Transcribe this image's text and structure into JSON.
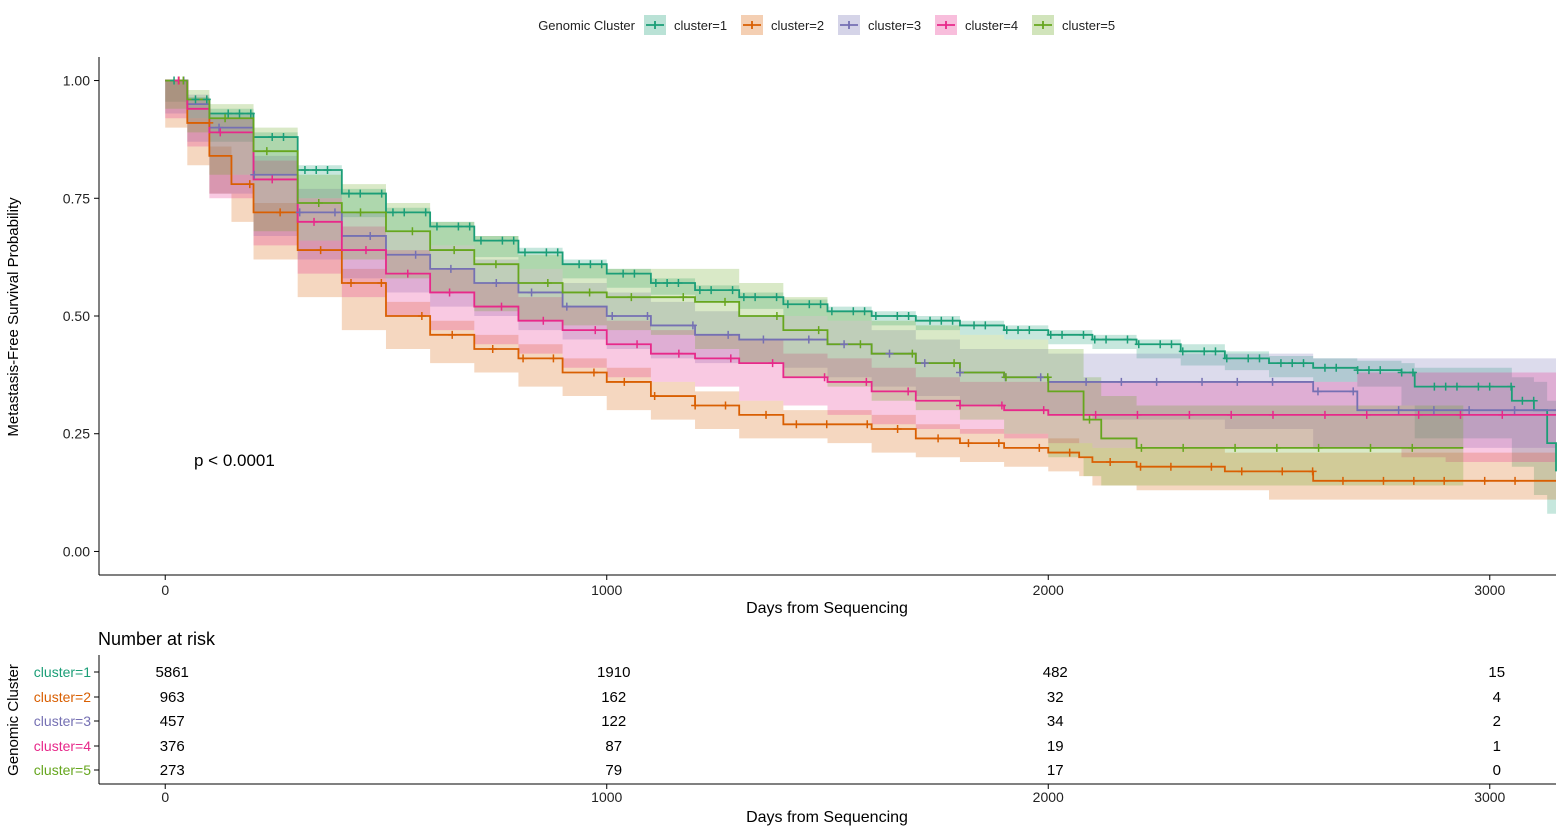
{
  "chart_data": {
    "type": "line",
    "subtype": "kaplan-meier survival curves with confidence bands and number-at-risk table",
    "legend": {
      "title": "Genomic Cluster",
      "position": "top",
      "entries": [
        "cluster=1",
        "cluster=2",
        "cluster=3",
        "cluster=4",
        "cluster=5"
      ]
    },
    "xlabel": "Days from Sequencing",
    "ylabel": "Metastasis-Free Survival Probability",
    "xlim": [
      -150,
      3150
    ],
    "ylim": [
      -0.05,
      1.05
    ],
    "x_ticks": [
      0,
      1000,
      2000,
      3000
    ],
    "x_tick_labels": [
      "0",
      "1000",
      "2000",
      "3000"
    ],
    "y_ticks": [
      0,
      0.25,
      0.5,
      0.75,
      1.0
    ],
    "y_tick_labels": [
      "0.00",
      "0.25",
      "0.50",
      "0.75",
      "1.00"
    ],
    "grid": false,
    "annotation": "p < 0.0001",
    "series": [
      {
        "name": "cluster=1",
        "color": "#1b9e77",
        "x": [
          0,
          50,
          100,
          200,
          300,
          400,
          500,
          600,
          700,
          800,
          900,
          1000,
          1100,
          1200,
          1300,
          1400,
          1500,
          1600,
          1700,
          1800,
          1900,
          2000,
          2100,
          2200,
          2300,
          2400,
          2500,
          2600,
          2700,
          2800,
          2830,
          3050,
          3100,
          3130,
          3150
        ],
        "y": [
          1.0,
          0.96,
          0.93,
          0.88,
          0.81,
          0.76,
          0.72,
          0.69,
          0.66,
          0.635,
          0.61,
          0.59,
          0.57,
          0.555,
          0.54,
          0.525,
          0.51,
          0.5,
          0.49,
          0.48,
          0.47,
          0.46,
          0.45,
          0.44,
          0.425,
          0.41,
          0.4,
          0.39,
          0.385,
          0.38,
          0.35,
          0.32,
          0.3,
          0.23,
          0.17
        ],
        "lower": [
          1.0,
          0.955,
          0.92,
          0.87,
          0.8,
          0.75,
          0.71,
          0.68,
          0.65,
          0.625,
          0.6,
          0.58,
          0.56,
          0.545,
          0.53,
          0.515,
          0.5,
          0.49,
          0.48,
          0.47,
          0.46,
          0.45,
          0.44,
          0.43,
          0.41,
          0.395,
          0.385,
          0.37,
          0.36,
          0.35,
          0.31,
          0.24,
          0.18,
          0.12,
          0.08
        ],
        "upper": [
          1.0,
          0.965,
          0.94,
          0.89,
          0.82,
          0.77,
          0.73,
          0.7,
          0.67,
          0.645,
          0.62,
          0.6,
          0.58,
          0.565,
          0.55,
          0.535,
          0.52,
          0.51,
          0.5,
          0.49,
          0.48,
          0.47,
          0.46,
          0.45,
          0.44,
          0.425,
          0.415,
          0.41,
          0.405,
          0.4,
          0.39,
          0.37,
          0.36,
          0.32,
          0.28
        ]
      },
      {
        "name": "cluster=2",
        "color": "#d95f02",
        "x": [
          0,
          50,
          100,
          150,
          200,
          300,
          400,
          500,
          600,
          700,
          800,
          900,
          1000,
          1100,
          1200,
          1300,
          1400,
          1500,
          1600,
          1700,
          1800,
          1900,
          2000,
          2070,
          2100,
          2200,
          2400,
          2500,
          2600,
          2800,
          2900,
          3000,
          3150
        ],
        "y": [
          1.0,
          0.91,
          0.84,
          0.78,
          0.72,
          0.64,
          0.57,
          0.5,
          0.46,
          0.43,
          0.41,
          0.38,
          0.36,
          0.33,
          0.31,
          0.29,
          0.27,
          0.27,
          0.26,
          0.24,
          0.23,
          0.22,
          0.21,
          0.2,
          0.19,
          0.18,
          0.17,
          0.17,
          0.15,
          0.15,
          0.15,
          0.15,
          0.15
        ],
        "lower": [
          1.0,
          0.9,
          0.82,
          0.76,
          0.7,
          0.62,
          0.54,
          0.47,
          0.43,
          0.4,
          0.38,
          0.35,
          0.33,
          0.3,
          0.28,
          0.26,
          0.24,
          0.24,
          0.23,
          0.21,
          0.2,
          0.19,
          0.18,
          0.17,
          0.16,
          0.14,
          0.13,
          0.13,
          0.11,
          0.11,
          0.11,
          0.11,
          0.11
        ],
        "upper": [
          1.0,
          0.92,
          0.86,
          0.8,
          0.74,
          0.66,
          0.6,
          0.53,
          0.49,
          0.46,
          0.44,
          0.41,
          0.39,
          0.36,
          0.34,
          0.32,
          0.3,
          0.3,
          0.29,
          0.27,
          0.26,
          0.25,
          0.24,
          0.23,
          0.22,
          0.22,
          0.21,
          0.21,
          0.21,
          0.21,
          0.21,
          0.21,
          0.21
        ]
      },
      {
        "name": "cluster=3",
        "color": "#7570b3",
        "x": [
          0,
          50,
          100,
          200,
          300,
          400,
          500,
          600,
          700,
          800,
          900,
          1000,
          1100,
          1200,
          1300,
          1400,
          1500,
          1600,
          1700,
          1800,
          1900,
          2000,
          2100,
          2200,
          2300,
          2400,
          2600,
          2700,
          2800,
          2900,
          3000,
          3150
        ],
        "y": [
          1.0,
          0.95,
          0.9,
          0.8,
          0.72,
          0.67,
          0.63,
          0.6,
          0.57,
          0.55,
          0.52,
          0.5,
          0.48,
          0.46,
          0.45,
          0.45,
          0.44,
          0.42,
          0.4,
          0.38,
          0.37,
          0.36,
          0.36,
          0.36,
          0.36,
          0.36,
          0.34,
          0.3,
          0.3,
          0.3,
          0.3,
          0.3
        ],
        "lower": [
          1.0,
          0.93,
          0.87,
          0.76,
          0.67,
          0.62,
          0.58,
          0.55,
          0.52,
          0.5,
          0.47,
          0.45,
          0.43,
          0.41,
          0.4,
          0.4,
          0.39,
          0.37,
          0.35,
          0.33,
          0.31,
          0.3,
          0.29,
          0.28,
          0.28,
          0.28,
          0.26,
          0.22,
          0.22,
          0.22,
          0.22,
          0.22
        ],
        "upper": [
          1.0,
          0.97,
          0.93,
          0.84,
          0.77,
          0.72,
          0.68,
          0.65,
          0.62,
          0.6,
          0.57,
          0.55,
          0.53,
          0.51,
          0.5,
          0.5,
          0.49,
          0.47,
          0.45,
          0.43,
          0.43,
          0.42,
          0.42,
          0.42,
          0.42,
          0.42,
          0.41,
          0.41,
          0.41,
          0.41,
          0.41,
          0.41
        ]
      },
      {
        "name": "cluster=4",
        "color": "#e7298a",
        "x": [
          0,
          50,
          100,
          200,
          300,
          400,
          500,
          600,
          700,
          800,
          900,
          1000,
          1100,
          1200,
          1300,
          1400,
          1500,
          1600,
          1700,
          1800,
          1900,
          2000,
          2100,
          2200,
          2400,
          2500,
          2700,
          2800,
          2900,
          3000,
          3150
        ],
        "y": [
          1.0,
          0.94,
          0.89,
          0.79,
          0.7,
          0.64,
          0.59,
          0.55,
          0.52,
          0.49,
          0.47,
          0.44,
          0.42,
          0.41,
          0.4,
          0.37,
          0.36,
          0.34,
          0.32,
          0.31,
          0.3,
          0.29,
          0.29,
          0.29,
          0.29,
          0.29,
          0.29,
          0.29,
          0.29,
          0.29,
          0.29
        ],
        "lower": [
          1.0,
          0.92,
          0.86,
          0.75,
          0.65,
          0.59,
          0.54,
          0.5,
          0.47,
          0.44,
          0.42,
          0.39,
          0.37,
          0.36,
          0.35,
          0.32,
          0.31,
          0.29,
          0.27,
          0.26,
          0.25,
          0.24,
          0.23,
          0.22,
          0.22,
          0.22,
          0.22,
          0.22,
          0.2,
          0.19,
          0.19
        ],
        "upper": [
          1.0,
          0.96,
          0.92,
          0.83,
          0.75,
          0.69,
          0.64,
          0.6,
          0.57,
          0.54,
          0.52,
          0.49,
          0.47,
          0.46,
          0.45,
          0.42,
          0.41,
          0.39,
          0.37,
          0.36,
          0.36,
          0.36,
          0.36,
          0.36,
          0.36,
          0.36,
          0.38,
          0.38,
          0.38,
          0.38,
          0.38
        ]
      },
      {
        "name": "cluster=5",
        "color": "#66a61e",
        "x": [
          0,
          50,
          100,
          200,
          300,
          400,
          500,
          600,
          700,
          800,
          900,
          1000,
          1100,
          1200,
          1300,
          1400,
          1500,
          1600,
          1700,
          1800,
          1900,
          2000,
          2080,
          2120,
          2200,
          2300,
          2600,
          2800,
          2940
        ],
        "y": [
          1.0,
          0.96,
          0.92,
          0.85,
          0.74,
          0.72,
          0.68,
          0.64,
          0.61,
          0.57,
          0.55,
          0.54,
          0.54,
          0.53,
          0.5,
          0.47,
          0.44,
          0.42,
          0.4,
          0.38,
          0.37,
          0.34,
          0.28,
          0.24,
          0.22,
          0.22,
          0.22,
          0.22,
          0.22
        ],
        "lower": [
          1.0,
          0.94,
          0.89,
          0.8,
          0.68,
          0.66,
          0.62,
          0.58,
          0.55,
          0.51,
          0.49,
          0.48,
          0.47,
          0.46,
          0.43,
          0.4,
          0.37,
          0.35,
          0.32,
          0.3,
          0.28,
          0.25,
          0.2,
          0.16,
          0.14,
          0.14,
          0.14,
          0.14,
          0.14
        ],
        "upper": [
          1.0,
          0.98,
          0.95,
          0.9,
          0.8,
          0.78,
          0.74,
          0.7,
          0.67,
          0.63,
          0.61,
          0.6,
          0.6,
          0.6,
          0.57,
          0.54,
          0.51,
          0.49,
          0.48,
          0.46,
          0.45,
          0.43,
          0.37,
          0.33,
          0.31,
          0.31,
          0.31,
          0.31,
          0.31
        ]
      }
    ],
    "risk_table": {
      "title": "Number at risk",
      "ylabel": "Genomic Cluster",
      "xlabel": "Days from Sequencing",
      "time_points": [
        0,
        1000,
        2000,
        3000
      ],
      "rows": [
        {
          "name": "cluster=1",
          "counts": [
            5861,
            1910,
            482,
            15
          ]
        },
        {
          "name": "cluster=2",
          "counts": [
            963,
            162,
            32,
            4
          ]
        },
        {
          "name": "cluster=3",
          "counts": [
            457,
            122,
            34,
            2
          ]
        },
        {
          "name": "cluster=4",
          "counts": [
            376,
            87,
            19,
            1
          ]
        },
        {
          "name": "cluster=5",
          "counts": [
            273,
            79,
            17,
            0
          ]
        }
      ]
    }
  }
}
